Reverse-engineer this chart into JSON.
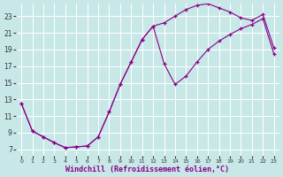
{
  "background_color": "#c8e8e8",
  "line_color": "#880088",
  "grid_color": "#b8d8d8",
  "xlabel": "Windchill (Refroidissement éolien,°C)",
  "xlim": [
    -0.5,
    23.5
  ],
  "ylim": [
    6.2,
    24.5
  ],
  "xticks": [
    0,
    1,
    2,
    3,
    4,
    5,
    6,
    7,
    8,
    9,
    10,
    11,
    12,
    13,
    14,
    15,
    16,
    17,
    18,
    19,
    20,
    21,
    22,
    23
  ],
  "yticks": [
    7,
    9,
    11,
    13,
    15,
    17,
    19,
    21,
    23
  ],
  "line1_x": [
    0,
    1,
    2,
    3,
    4,
    5,
    6,
    7,
    8,
    9,
    10,
    11,
    12,
    13,
    14,
    15,
    16,
    17,
    18,
    19,
    20,
    21,
    22,
    23
  ],
  "line1_y": [
    12.5,
    9.2,
    8.5,
    7.8,
    7.2,
    7.3,
    7.4,
    8.5,
    11.5,
    14.8,
    17.5,
    20.2,
    21.8,
    22.2,
    23.0,
    23.8,
    24.3,
    24.5,
    24.0,
    23.5,
    22.8,
    22.5,
    23.2,
    19.2
  ],
  "line2_x": [
    0,
    1,
    2,
    3,
    4,
    5,
    6,
    7,
    8,
    9,
    10,
    11,
    12,
    13,
    14,
    15,
    16,
    17,
    18,
    19,
    20,
    21,
    22,
    23
  ],
  "line2_y": [
    12.5,
    9.2,
    8.5,
    7.8,
    7.2,
    7.3,
    7.4,
    8.5,
    11.5,
    14.8,
    17.5,
    20.2,
    21.8,
    17.3,
    14.8,
    15.8,
    17.5,
    19.0,
    20.0,
    20.8,
    21.5,
    22.0,
    22.7,
    18.5
  ],
  "marker": "+",
  "markersize": 3.5,
  "linewidth": 0.8,
  "tick_fontsize": 5.5,
  "xlabel_fontsize": 6.0
}
